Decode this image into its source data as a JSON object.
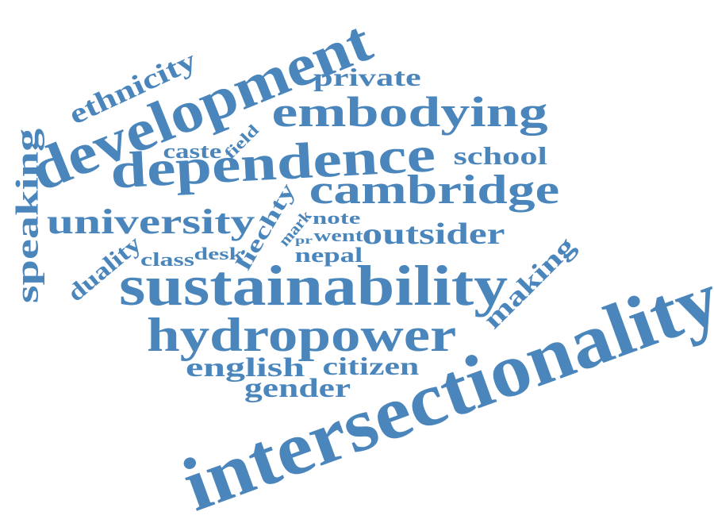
{
  "accent_color": "#4a86bc",
  "words": [
    "intersectionality",
    "sustainability",
    "development",
    "dependence",
    "hydropower",
    "embodying",
    "cambridge",
    "university",
    "speaking",
    "ethnicity",
    "outsider",
    "making",
    "private",
    "school",
    "english",
    "citizen",
    "gender",
    "duality",
    "liechty",
    "nepal",
    "class",
    "desk",
    "caste",
    "field",
    "mark",
    "note",
    "went",
    "pr"
  ]
}
